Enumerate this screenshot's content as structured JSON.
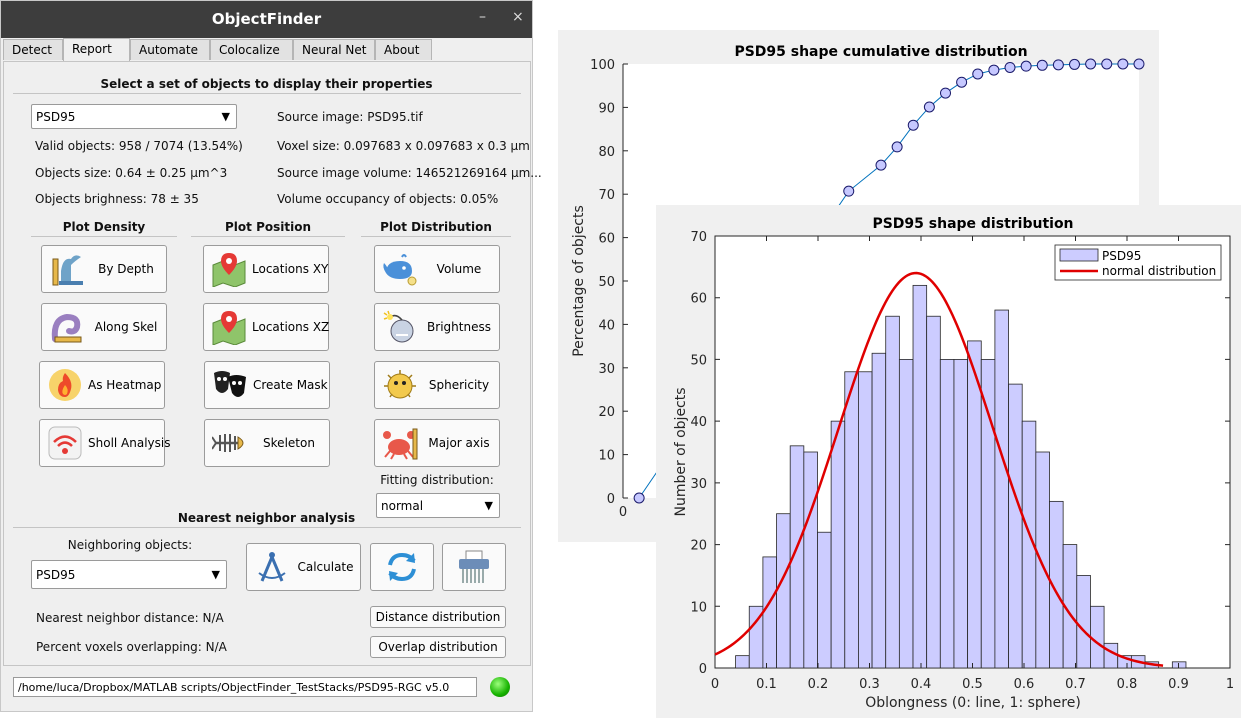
{
  "window": {
    "title": "ObjectFinder",
    "minimize": "–",
    "close": "×"
  },
  "tabs": [
    "Detect",
    "Report",
    "Automate",
    "Colocalize",
    "Neural Net",
    "About"
  ],
  "report": {
    "heading": "Select a set of objects to display their properties",
    "object_set": "PSD95",
    "valid_objects": "Valid objects: 958 / 7074 (13.54%)",
    "objects_size": "Objects size: 0.64 ± 0.25 µm^3",
    "objects_brightness": "Objects brighness: 78 ± 35",
    "source_image": "Source image: PSD95.tif",
    "voxel_size": "Voxel size: 0.097683 x 0.097683 x 0.3 µm",
    "source_volume": "Source image volume: 146521269164 µm...",
    "volume_occupancy": "Volume occupancy of objects: 0.05%",
    "plot_density": "Plot Density",
    "plot_position": "Plot Position",
    "plot_distribution": "Plot Distribution",
    "density_buttons": [
      "By Depth",
      "Along Skel",
      "As Heatmap",
      "Sholl Analysis"
    ],
    "position_buttons": [
      "Locations XY",
      "Locations XZ",
      "Create Mask",
      "Skeleton"
    ],
    "distribution_buttons": [
      "Volume",
      "Brightness",
      "Sphericity",
      "Major axis"
    ],
    "fitting_label": "Fitting distribution:",
    "fitting_value": "normal",
    "nn_heading": "Nearest neighbor analysis",
    "neighboring_label": "Neighboring objects:",
    "neighboring_value": "PSD95",
    "calculate": "Calculate",
    "nn_distance": "Nearest neighbor distance: N/A",
    "percent_overlap": "Percent voxels overlapping: N/A",
    "distance_distribution": "Distance distribution",
    "overlap_distribution": "Overlap distribution"
  },
  "status_path": "/home/luca/Dropbox/MATLAB scripts/ObjectFinder_TestStacks/PSD95-RGC v5.0",
  "colors": {
    "titlebar": "#3d3d3d",
    "bars": "#ccccff",
    "fit_line": "#e00000",
    "cdf_line": "#0072bd",
    "status_led": "#17b300"
  },
  "chart_data": [
    {
      "type": "line",
      "title": "PSD95 shape cumulative distribution",
      "ylabel": "Percentage of objects",
      "xlabel": "",
      "x_tick_labels": [
        "0"
      ],
      "y_tick_labels": [
        "0",
        "10",
        "20",
        "30",
        "40",
        "50",
        "60",
        "70",
        "80",
        "90",
        "100"
      ],
      "ylim": [
        0,
        100
      ],
      "visible_x": [
        0.025,
        0.35,
        0.4,
        0.425,
        0.45,
        0.475,
        0.5,
        0.525,
        0.55,
        0.575,
        0.6,
        0.625,
        0.65,
        0.675,
        0.7,
        0.725,
        0.75,
        0.775,
        0.8
      ],
      "visible_y": [
        0.0,
        70.7,
        76.7,
        80.9,
        85.9,
        90.1,
        93.3,
        95.8,
        97.7,
        98.6,
        99.2,
        99.5,
        99.7,
        99.8,
        99.9,
        100.0,
        100.0,
        100.0,
        100.0
      ]
    },
    {
      "type": "bar",
      "title": "PSD95 shape distribution",
      "xlabel": "Oblongness (0: line, 1: sphere)",
      "ylabel": "Number of objects",
      "xlim": [
        0,
        1
      ],
      "ylim": [
        0,
        70
      ],
      "x_tick_labels": [
        "0",
        "0.1",
        "0.2",
        "0.3",
        "0.4",
        "0.5",
        "0.6",
        "0.7",
        "0.8",
        "0.9",
        "1"
      ],
      "y_tick_labels": [
        "0",
        "10",
        "20",
        "30",
        "40",
        "50",
        "60",
        "70"
      ],
      "bin_width": 0.0265,
      "bin_start": 0.04,
      "values": [
        2,
        10,
        18,
        25,
        36,
        35,
        22,
        40,
        48,
        48,
        51,
        57,
        50,
        62,
        57,
        50,
        50,
        53,
        50,
        58,
        46,
        40,
        35,
        27,
        20,
        15,
        10,
        4,
        2,
        2,
        1,
        0,
        1
      ],
      "legend": [
        "PSD95",
        "normal distribution"
      ],
      "legend_position": "top-right",
      "fit": {
        "name": "normal distribution",
        "mean": 0.39,
        "std": 0.15,
        "peak": 64
      }
    }
  ]
}
